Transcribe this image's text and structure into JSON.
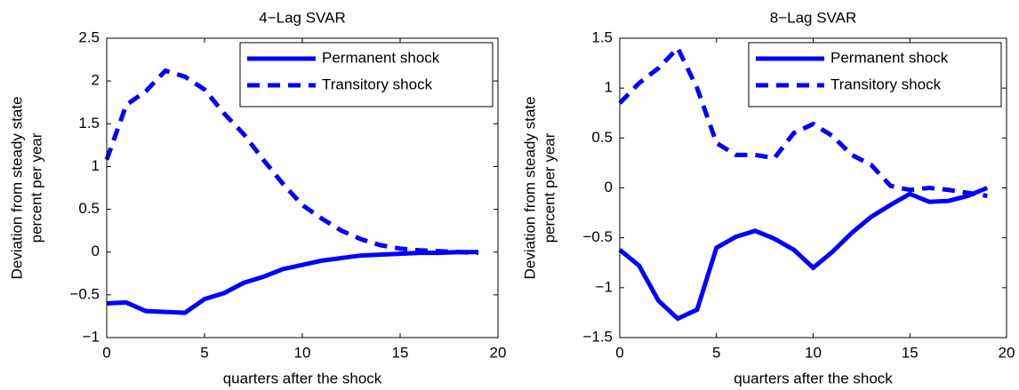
{
  "chart_data": [
    {
      "type": "line",
      "title": "4−Lag SVAR",
      "xlabel": "quarters after the shock",
      "ylabel": [
        "Deviation from steady state",
        "percent per year"
      ],
      "x": [
        0,
        1,
        2,
        3,
        4,
        5,
        6,
        7,
        8,
        9,
        10,
        11,
        12,
        13,
        14,
        15,
        16,
        17,
        18,
        19
      ],
      "series": [
        {
          "name": "Permanent shock",
          "color": "#0000ff",
          "dash": false,
          "values": [
            -0.6,
            -0.59,
            -0.69,
            -0.7,
            -0.71,
            -0.55,
            -0.48,
            -0.36,
            -0.29,
            -0.2,
            -0.15,
            -0.1,
            -0.07,
            -0.04,
            -0.03,
            -0.02,
            -0.01,
            -0.01,
            0,
            0
          ]
        },
        {
          "name": "Transitory shock",
          "color": "#0000ff",
          "dash": true,
          "values": [
            1.08,
            1.72,
            1.88,
            2.12,
            2.05,
            1.9,
            1.62,
            1.38,
            1.08,
            0.8,
            0.55,
            0.39,
            0.25,
            0.15,
            0.08,
            0.04,
            0.02,
            0.01,
            0,
            -0.01
          ]
        }
      ],
      "xlim": [
        0,
        20
      ],
      "xticks": [
        0,
        5,
        10,
        15,
        20
      ],
      "ylim": [
        -1,
        2.5
      ],
      "yticks": [
        {
          "value": -1,
          "label": "−1"
        },
        {
          "value": -0.5,
          "label": "−0.5"
        },
        0,
        0.5,
        1,
        1.5,
        2,
        2.5
      ],
      "legend": "northeast"
    },
    {
      "type": "line",
      "title": "8−Lag SVAR",
      "xlabel": "quarters after the shock",
      "ylabel": [
        "Deviation from steady state",
        "percent per year"
      ],
      "x": [
        0,
        1,
        2,
        3,
        4,
        5,
        6,
        7,
        8,
        9,
        10,
        11,
        12,
        13,
        14,
        15,
        16,
        17,
        18,
        19
      ],
      "series": [
        {
          "name": "Permanent shock",
          "color": "#0000ff",
          "dash": false,
          "values": [
            -0.62,
            -0.78,
            -1.13,
            -1.31,
            -1.22,
            -0.6,
            -0.49,
            -0.43,
            -0.51,
            -0.62,
            -0.8,
            -0.64,
            -0.45,
            -0.29,
            -0.17,
            -0.06,
            -0.14,
            -0.13,
            -0.08,
            0
          ]
        },
        {
          "name": "Transitory shock",
          "color": "#0000ff",
          "dash": true,
          "values": [
            0.85,
            1.05,
            1.2,
            1.4,
            1.0,
            0.45,
            0.33,
            0.33,
            0.3,
            0.55,
            0.64,
            0.52,
            0.33,
            0.23,
            0.02,
            -0.02,
            0,
            -0.02,
            -0.05,
            -0.08
          ]
        }
      ],
      "xlim": [
        0,
        20
      ],
      "xticks": [
        0,
        5,
        10,
        15,
        20
      ],
      "ylim": [
        -1.5,
        1.5
      ],
      "yticks": [
        {
          "value": -1.5,
          "label": "−1.5"
        },
        {
          "value": -1,
          "label": "−1"
        },
        {
          "value": -0.5,
          "label": "−0.5"
        },
        0,
        0.5,
        1,
        1.5
      ],
      "legend": "northeast"
    }
  ]
}
